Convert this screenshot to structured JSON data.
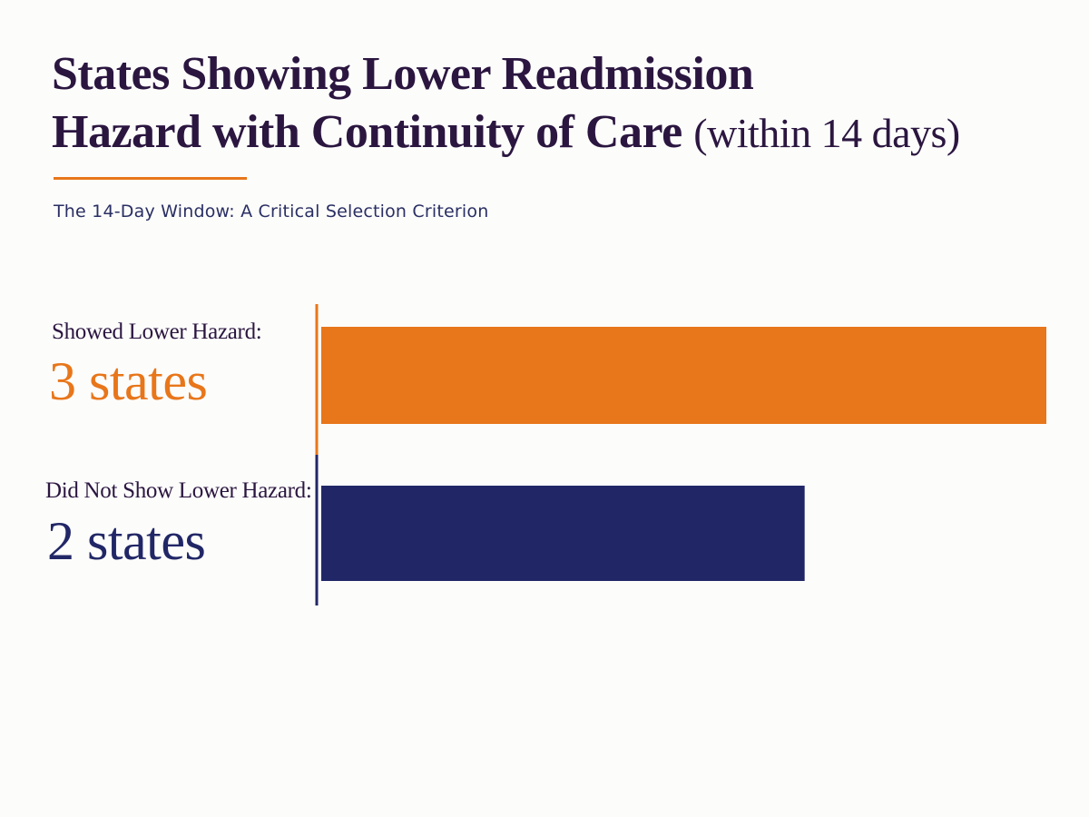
{
  "title": {
    "line1": "States Showing Lower Readmission",
    "line2_main": "Hazard with Continuity of Care",
    "line2_suffix": "(within 14 days)"
  },
  "subtitle": "The 14-Day Window: A Critical Selection Criterion",
  "colors": {
    "title": "#2b1640",
    "accent": "#e8761a",
    "navy": "#212766"
  },
  "chart_data": {
    "type": "bar",
    "orientation": "horizontal",
    "categories": [
      "Showed Lower Hazard:",
      "Did Not Show Lower Hazard:"
    ],
    "values": [
      3,
      2
    ],
    "value_labels": [
      "3 states",
      "2 states"
    ],
    "colors": [
      "#e8761a",
      "#212766"
    ],
    "xlim": [
      0,
      3
    ],
    "grid": false,
    "legend": "none"
  }
}
